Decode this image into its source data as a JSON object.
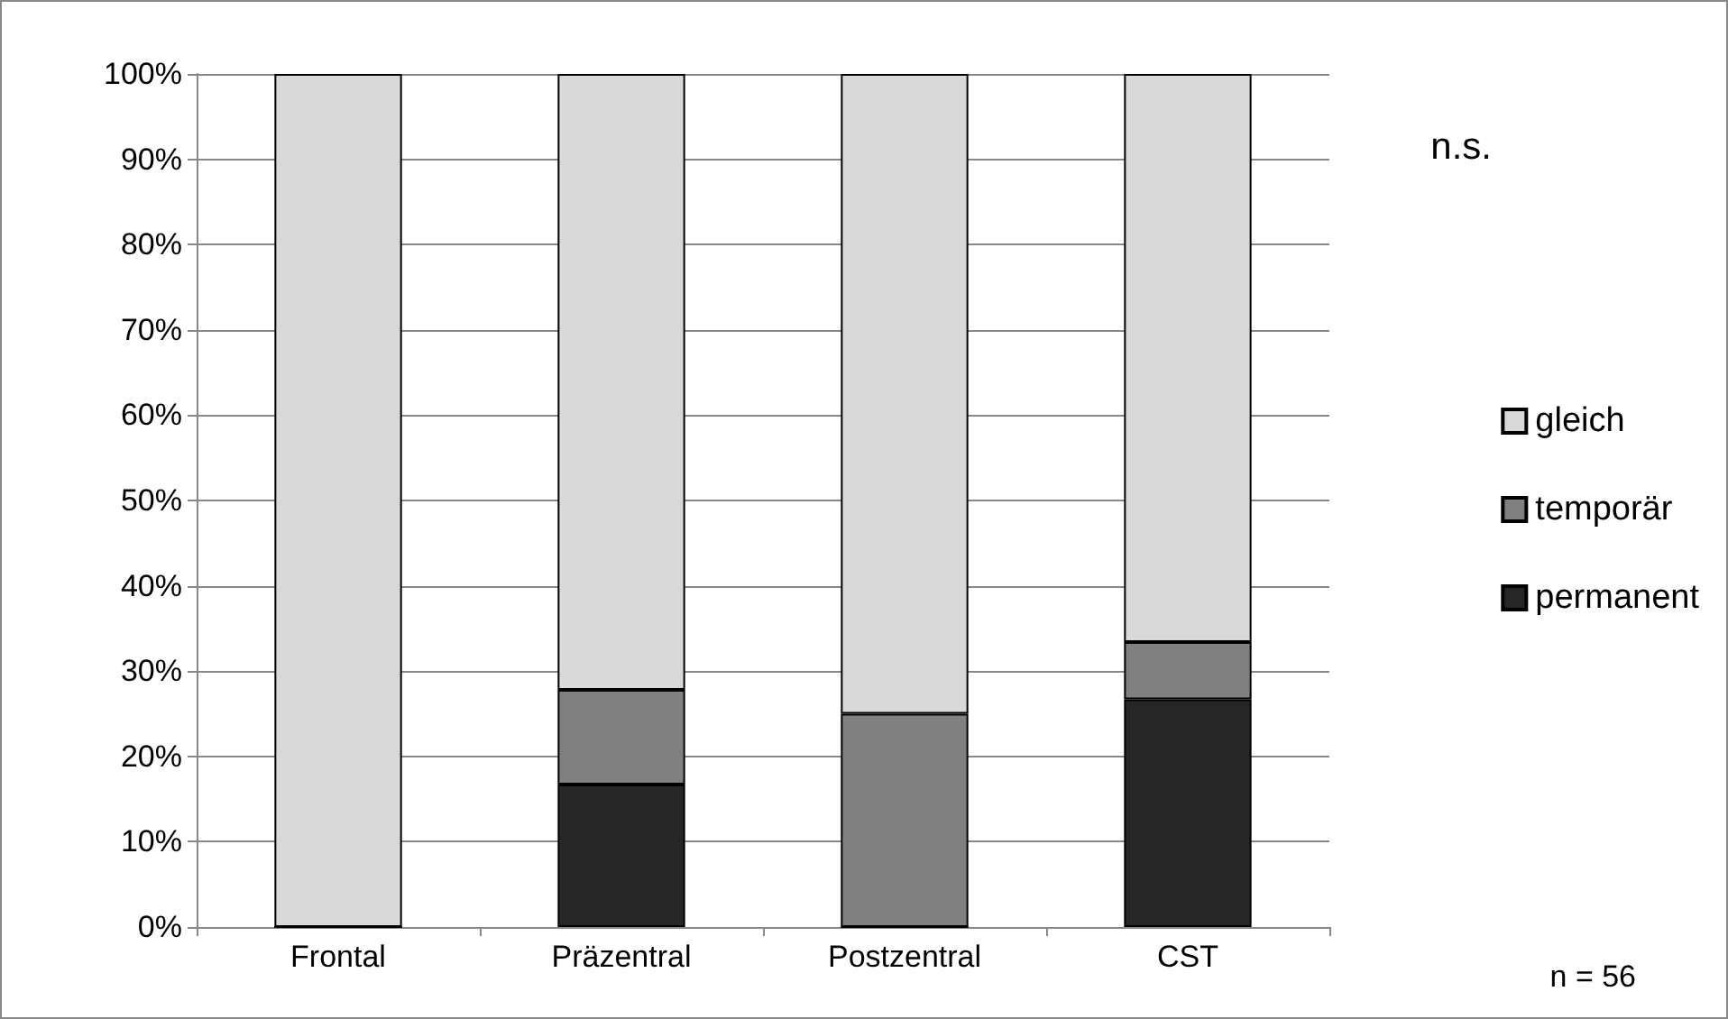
{
  "chart_data": {
    "type": "bar",
    "stacked": true,
    "categories": [
      "Frontal",
      "Präzentral",
      "Postzentral",
      "CST"
    ],
    "series": [
      {
        "name": "permanent",
        "color": "#262626",
        "values": [
          0,
          16.7,
          0,
          26.7
        ]
      },
      {
        "name": "temporär",
        "color": "#808080",
        "values": [
          0,
          11.1,
          25,
          6.7
        ]
      },
      {
        "name": "gleich",
        "color": "#d9d9d9",
        "values": [
          100,
          72.2,
          75,
          66.6
        ]
      }
    ],
    "ylim": [
      0,
      100
    ],
    "yticks": [
      {
        "value": 0,
        "label": "0%"
      },
      {
        "value": 10,
        "label": "10%"
      },
      {
        "value": 20,
        "label": "20%"
      },
      {
        "value": 30,
        "label": "30%"
      },
      {
        "value": 40,
        "label": "40%"
      },
      {
        "value": 50,
        "label": "50%"
      },
      {
        "value": 60,
        "label": "60%"
      },
      {
        "value": 70,
        "label": "70%"
      },
      {
        "value": 80,
        "label": "80%"
      },
      {
        "value": 90,
        "label": "90%"
      },
      {
        "value": 100,
        "label": "100%"
      }
    ],
    "grid": "y",
    "legend": "right",
    "annotations": [
      "n.s.",
      "n = 56"
    ]
  }
}
